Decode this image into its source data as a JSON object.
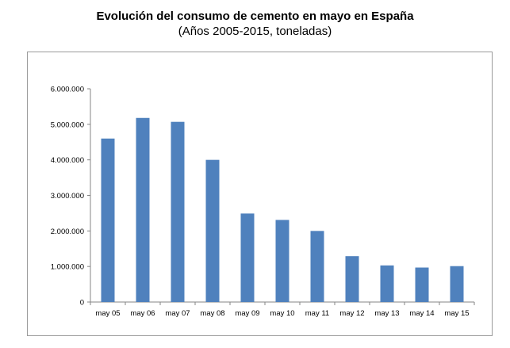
{
  "chart_data": {
    "type": "bar",
    "title": "Evolución del consumo de cemento en mayo en España",
    "subtitle": "(Años 2005-2015, toneladas)",
    "categories": [
      "may 05",
      "may 06",
      "may 07",
      "may 08",
      "may 09",
      "may 10",
      "may 11",
      "may 12",
      "may 13",
      "may 14",
      "may 15"
    ],
    "values": [
      4600000,
      5180000,
      5070000,
      4000000,
      2490000,
      2310000,
      2000000,
      1290000,
      1030000,
      970000,
      1010000
    ],
    "ylim": [
      0,
      6000000
    ],
    "yticks": [
      0,
      1000000,
      2000000,
      3000000,
      4000000,
      5000000,
      6000000
    ],
    "ytick_labels": [
      "0",
      "1.000.000",
      "2.000.000",
      "3.000.000",
      "4.000.000",
      "5.000.000",
      "6.000.000"
    ],
    "grid": false,
    "bar_color": "#4f81bd",
    "xlabel": "",
    "ylabel": ""
  }
}
